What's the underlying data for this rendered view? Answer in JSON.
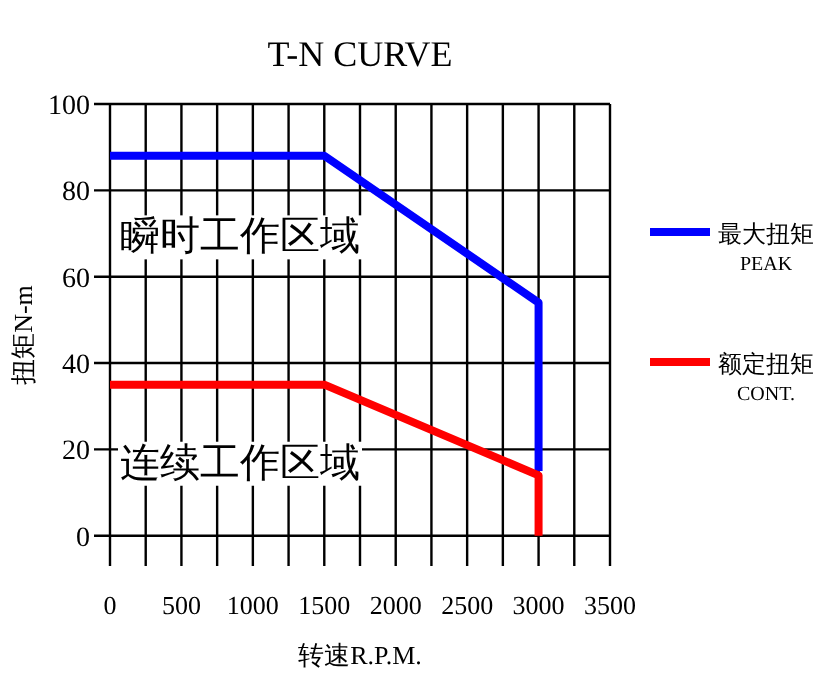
{
  "chart_data": {
    "type": "line",
    "title": "T-N CURVE",
    "xlabel": "转速R.P.M.",
    "ylabel": "扭矩N-m",
    "xlim": [
      0,
      3500
    ],
    "ylim": [
      -7,
      100
    ],
    "xticks": [
      0,
      {
        "value": 250,
        "label": null
      },
      500,
      {
        "value": 750,
        "label": null
      },
      1000,
      {
        "value": 1250,
        "label": null
      },
      1500,
      {
        "value": 1750,
        "label": null
      },
      2000,
      {
        "value": 2250,
        "label": null
      },
      2500,
      {
        "value": 2750,
        "label": null
      },
      3000,
      {
        "value": 3250,
        "label": null
      },
      3500
    ],
    "yticks": [
      0,
      20,
      40,
      60,
      80,
      100
    ],
    "grid": true,
    "legend": "right",
    "line_style": "solid",
    "annotations": [
      "瞬时工作区域",
      "连续工作区域"
    ],
    "series": [
      {
        "name": "最大扭矩\nPEAK",
        "color": "#0000ff",
        "x": [
          0,
          1500,
          3000,
          3000
        ],
        "values": [
          88,
          88,
          54,
          15
        ]
      },
      {
        "name": "额定扭矩\nCONT.",
        "color": "#ff0000",
        "x": [
          0,
          1500,
          3000,
          3000
        ],
        "values": [
          35,
          35,
          14,
          0
        ]
      }
    ]
  }
}
